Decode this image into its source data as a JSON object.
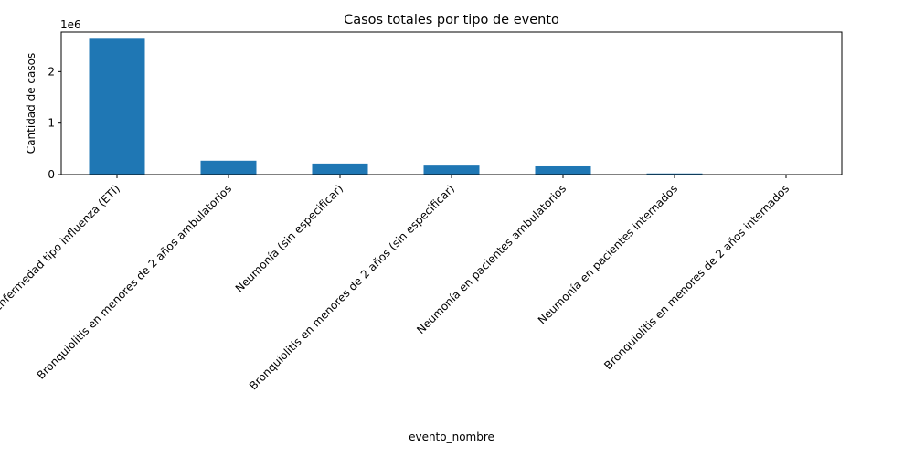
{
  "chart_data": {
    "type": "bar",
    "title": "Casos totales por tipo de evento",
    "xlabel": "evento_nombre",
    "ylabel": "Cantidad de casos",
    "y_offset_label": "1e6",
    "y_scale": 1000000,
    "ylim": [
      0,
      2770000
    ],
    "yticks": [
      0,
      1000000,
      2000000
    ],
    "ytick_labels": [
      "0",
      "1",
      "2"
    ],
    "grid": false,
    "categories": [
      "Enfermedad tipo influenza (ETI)",
      "Bronquiolitis en menores de 2 años ambulatorios",
      "Neumonía (sin especificar)",
      "Bronquiolitis en menores de 2 años (sin especificar)",
      "Neumonía en pacientes ambulatorios",
      "Neumonía en pacientes internados",
      "Bronquiolitis en menores de 2 años internados"
    ],
    "values": [
      2640000,
      270000,
      215000,
      175000,
      160000,
      22000,
      5000
    ],
    "colors": {
      "bar": "#1f77b4",
      "axis": "#000000"
    }
  }
}
